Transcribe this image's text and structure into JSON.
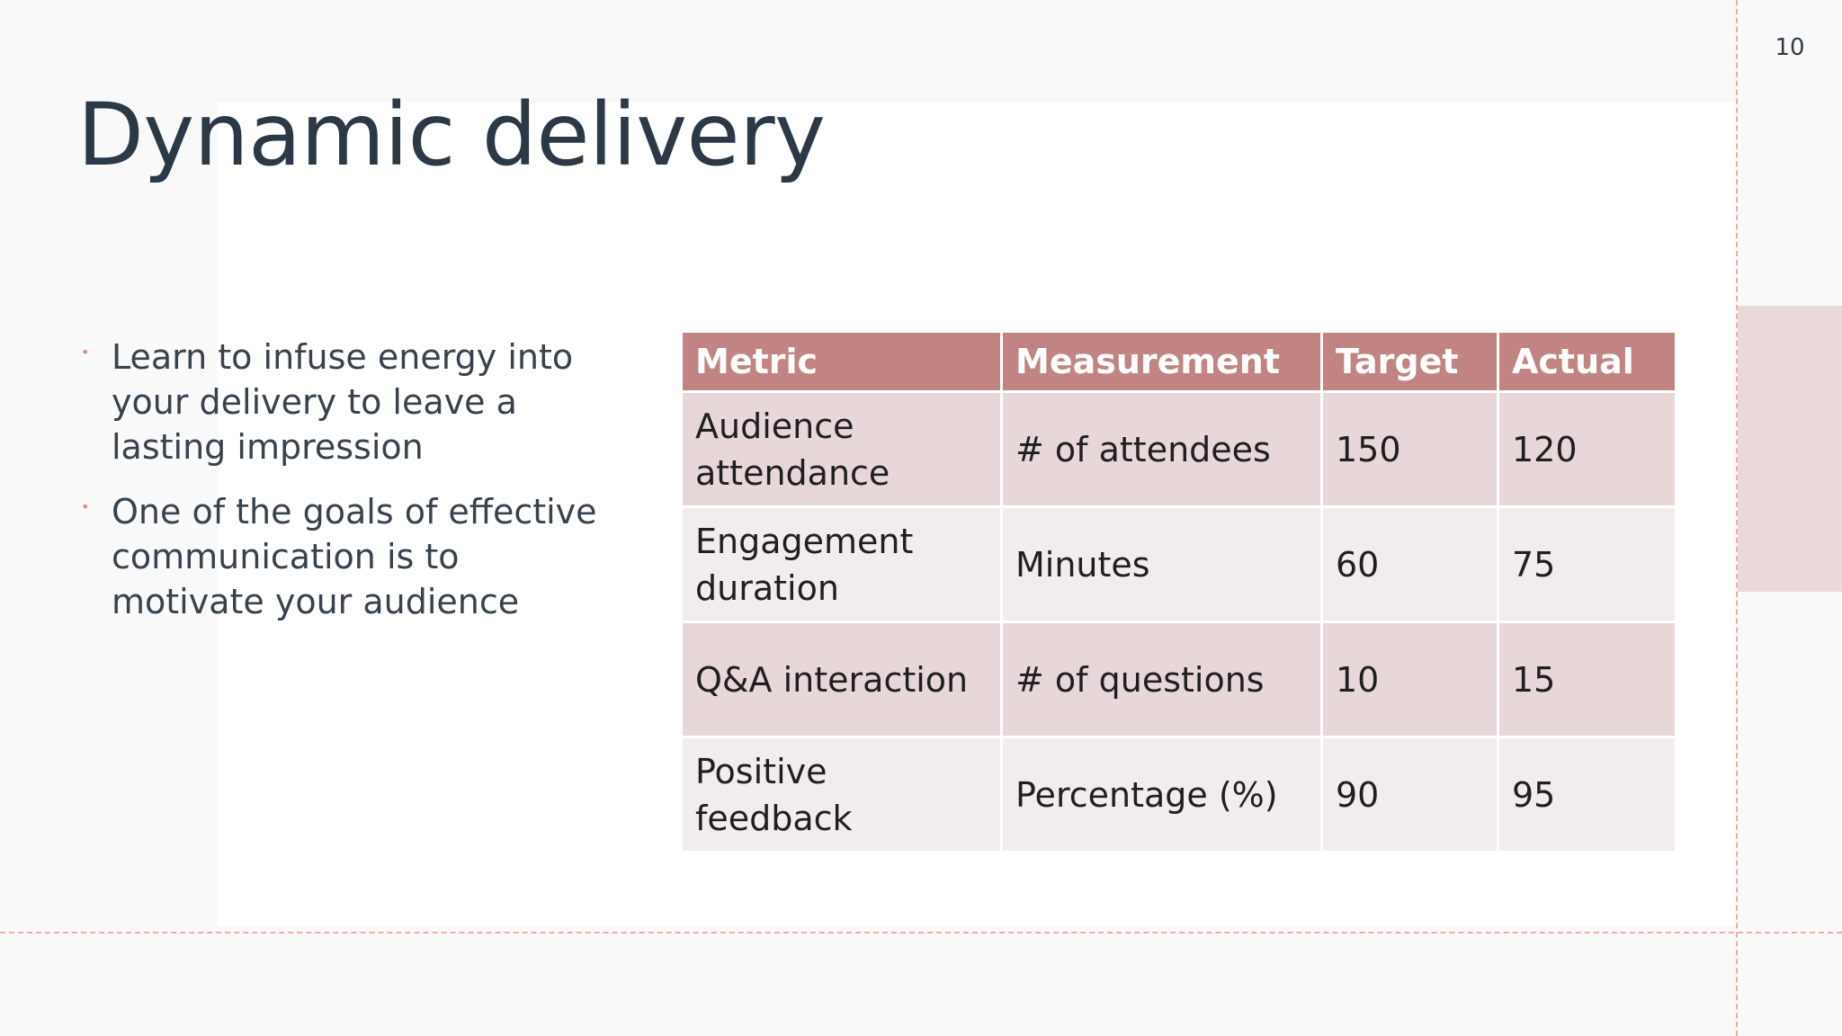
{
  "slide": {
    "title": "Dynamic delivery",
    "page_number": "10",
    "bullets": [
      "Learn to infuse energy into your delivery to leave a lasting impression",
      "One of the goals of effective communication is to motivate your audience"
    ],
    "bullet_glyph": "•"
  },
  "table": {
    "headers": [
      "Metric",
      "Measurement",
      "Target",
      "Actual"
    ],
    "rows": [
      [
        "Audience attendance",
        "# of attendees",
        "150",
        "120"
      ],
      [
        "Engagement duration",
        "Minutes",
        "60",
        "75"
      ],
      [
        "Q&A interaction",
        "# of questions",
        "10",
        "15"
      ],
      [
        "Positive feedback",
        "Percentage (%)",
        "90",
        "95"
      ]
    ]
  },
  "colors": {
    "header_bg": "#c18483",
    "row_odd": "#e8d7d8",
    "row_even": "#f3ecec",
    "accent_dash": "#f2aba0",
    "title_text": "#2b3845"
  }
}
